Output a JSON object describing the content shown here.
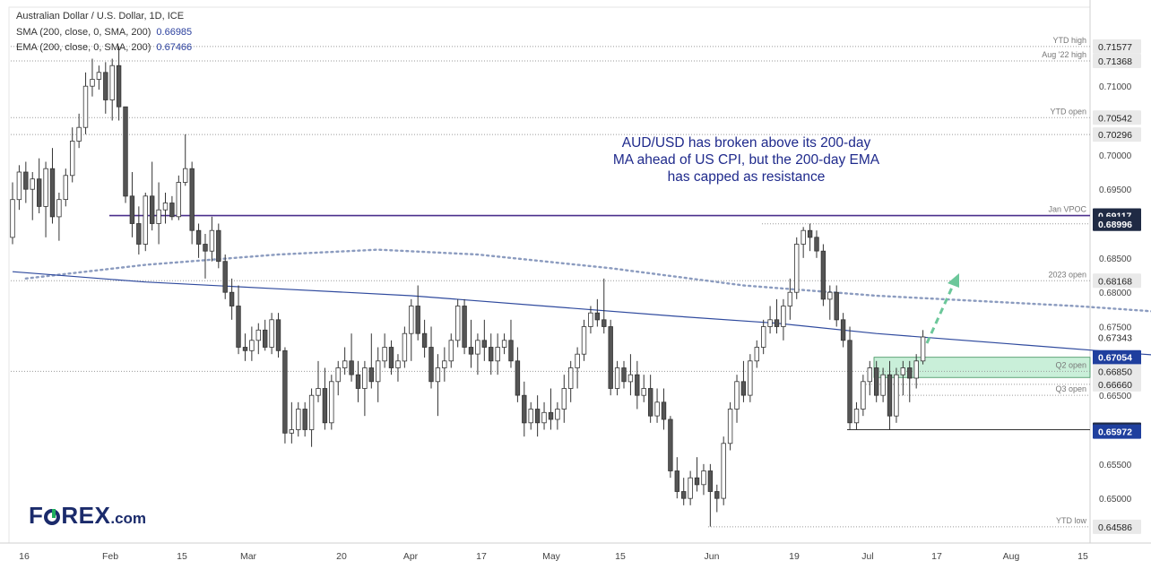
{
  "header": {
    "title": "Australian Dollar / U.S. Dollar, 1D, ICE",
    "sma_label": "SMA (200, close, 0, SMA, 200)",
    "sma_value": "0.66985",
    "ema_label": "EMA (200, close, 0, SMA, 200)",
    "ema_value": "0.67466"
  },
  "annotation": {
    "lines": [
      "AUD/USD has broken above its 200-day",
      "MA ahead of US CPI, but the 200-day EMA",
      "has capped as resistance"
    ]
  },
  "logo": {
    "text_1": "F",
    "text_2": "REX",
    "text_3": ".com"
  },
  "colors": {
    "bull": "#ffffff",
    "bear": "#555555",
    "wick": "#333333",
    "sma": "#2f4a9e",
    "ema": "#8b9bbf",
    "vpoc": "#4a2f8c",
    "zone": "#c9efd9",
    "arrow": "#6cc79a",
    "label_dark": "#1f2a44",
    "label_blue": "#1f3f9e"
  },
  "chart_data": {
    "type": "candlestick",
    "symbol": "Australian Dollar / U.S. Dollar",
    "timeframe": "1D",
    "ylim": [
      0.6435,
      0.7215
    ],
    "x_tick_labels": [
      "16",
      "Feb",
      "15",
      "Mar",
      "20",
      "Apr",
      "17",
      "May",
      "15",
      "Jun",
      "19",
      "Jul",
      "17",
      "Aug",
      "15"
    ],
    "y_tick_labels": [
      "0.71000",
      "0.70000",
      "0.69500",
      "0.68500",
      "0.68000",
      "0.67500",
      "0.66500",
      "0.65500",
      "0.65000"
    ],
    "y_tick_values": [
      0.71,
      0.7,
      0.695,
      0.685,
      0.68,
      0.675,
      0.665,
      0.655,
      0.65
    ],
    "price_levels": [
      {
        "label": "YTD high",
        "value": 0.71577,
        "badge": "0.71577",
        "style": "gray"
      },
      {
        "label": "Aug '22 high",
        "value": 0.71368,
        "badge": "0.71368",
        "style": "gray"
      },
      {
        "label": "YTD open",
        "value": 0.70542,
        "badge": "0.70542",
        "style": "gray"
      },
      {
        "label": "",
        "value": 0.70296,
        "badge": "0.70296",
        "style": "gray"
      },
      {
        "label": "Jan VPOC",
        "value": 0.69117,
        "badge": "0.69117",
        "style": "dark"
      },
      {
        "label": "",
        "value": 0.68996,
        "badge": "0.68996",
        "style": "dark"
      },
      {
        "label": "2023 open",
        "value": 0.68168,
        "badge": "0.68168",
        "style": "gray"
      },
      {
        "label": "",
        "value": 0.67343,
        "badge": "0.67343",
        "style": "plain"
      },
      {
        "label": "",
        "value": 0.67054,
        "badge": "0.67054",
        "style": "blue"
      },
      {
        "label": "Q2 open",
        "value": 0.6685,
        "badge": "0.66850",
        "style": "gray"
      },
      {
        "label": "",
        "value": 0.6666,
        "badge": "0.66660",
        "style": "gray"
      },
      {
        "label": "Q3 open",
        "value": 0.665,
        "badge": "",
        "style": "none"
      },
      {
        "label": "",
        "value": 0.66,
        "badge": "0.66000",
        "style": "dark"
      },
      {
        "label": "",
        "value": 0.65972,
        "badge": "0.65972",
        "style": "blue"
      },
      {
        "label": "YTD low",
        "value": 0.64586,
        "badge": "0.64586",
        "style": "gray"
      }
    ],
    "candles_ohlc": [
      [
        0.688,
        0.696,
        0.687,
        0.6935
      ],
      [
        0.6935,
        0.6985,
        0.692,
        0.6975
      ],
      [
        0.6975,
        0.699,
        0.693,
        0.695
      ],
      [
        0.695,
        0.6975,
        0.6905,
        0.6965
      ],
      [
        0.6965,
        0.6995,
        0.6915,
        0.6925
      ],
      [
        0.6925,
        0.699,
        0.688,
        0.698
      ],
      [
        0.698,
        0.701,
        0.69,
        0.691
      ],
      [
        0.691,
        0.6945,
        0.6875,
        0.6935
      ],
      [
        0.6935,
        0.698,
        0.6925,
        0.697
      ],
      [
        0.697,
        0.704,
        0.696,
        0.702
      ],
      [
        0.702,
        0.706,
        0.701,
        0.704
      ],
      [
        0.704,
        0.712,
        0.703,
        0.71
      ],
      [
        0.71,
        0.714,
        0.7085,
        0.711
      ],
      [
        0.711,
        0.713,
        0.7095,
        0.712
      ],
      [
        0.712,
        0.7135,
        0.706,
        0.708
      ],
      [
        0.708,
        0.714,
        0.705,
        0.713
      ],
      [
        0.713,
        0.7158,
        0.705,
        0.707
      ],
      [
        0.707,
        0.707,
        0.693,
        0.694
      ],
      [
        0.694,
        0.6975,
        0.688,
        0.69
      ],
      [
        0.69,
        0.6925,
        0.6855,
        0.687
      ],
      [
        0.687,
        0.6945,
        0.686,
        0.694
      ],
      [
        0.694,
        0.699,
        0.689,
        0.69
      ],
      [
        0.69,
        0.696,
        0.687,
        0.692
      ],
      [
        0.692,
        0.6945,
        0.69,
        0.693
      ],
      [
        0.693,
        0.694,
        0.6905,
        0.691
      ],
      [
        0.691,
        0.697,
        0.6905,
        0.696
      ],
      [
        0.696,
        0.703,
        0.6955,
        0.698
      ],
      [
        0.698,
        0.699,
        0.687,
        0.689
      ],
      [
        0.689,
        0.69,
        0.685,
        0.687
      ],
      [
        0.687,
        0.6885,
        0.682,
        0.686
      ],
      [
        0.686,
        0.691,
        0.6845,
        0.689
      ],
      [
        0.689,
        0.69,
        0.6835,
        0.6845
      ],
      [
        0.6845,
        0.6855,
        0.679,
        0.68
      ],
      [
        0.68,
        0.682,
        0.676,
        0.678
      ],
      [
        0.678,
        0.681,
        0.671,
        0.672
      ],
      [
        0.672,
        0.674,
        0.67,
        0.6715
      ],
      [
        0.6715,
        0.675,
        0.67,
        0.673
      ],
      [
        0.673,
        0.6755,
        0.671,
        0.6745
      ],
      [
        0.6745,
        0.676,
        0.6715,
        0.672
      ],
      [
        0.672,
        0.677,
        0.671,
        0.676
      ],
      [
        0.676,
        0.677,
        0.6705,
        0.6715
      ],
      [
        0.6715,
        0.672,
        0.658,
        0.6595
      ],
      [
        0.6595,
        0.664,
        0.658,
        0.66
      ],
      [
        0.66,
        0.664,
        0.659,
        0.663
      ],
      [
        0.663,
        0.664,
        0.659,
        0.66
      ],
      [
        0.66,
        0.666,
        0.6575,
        0.665
      ],
      [
        0.665,
        0.67,
        0.664,
        0.666
      ],
      [
        0.666,
        0.669,
        0.66,
        0.661
      ],
      [
        0.661,
        0.668,
        0.66,
        0.667
      ],
      [
        0.667,
        0.67,
        0.665,
        0.669
      ],
      [
        0.669,
        0.672,
        0.668,
        0.67
      ],
      [
        0.67,
        0.674,
        0.667,
        0.668
      ],
      [
        0.668,
        0.67,
        0.664,
        0.666
      ],
      [
        0.666,
        0.67,
        0.662,
        0.669
      ],
      [
        0.669,
        0.674,
        0.666,
        0.667
      ],
      [
        0.667,
        0.672,
        0.664,
        0.67
      ],
      [
        0.67,
        0.674,
        0.669,
        0.672
      ],
      [
        0.672,
        0.673,
        0.668,
        0.669
      ],
      [
        0.669,
        0.671,
        0.667,
        0.67
      ],
      [
        0.67,
        0.675,
        0.669,
        0.674
      ],
      [
        0.674,
        0.679,
        0.67,
        0.678
      ],
      [
        0.678,
        0.681,
        0.673,
        0.674
      ],
      [
        0.674,
        0.676,
        0.6705,
        0.672
      ],
      [
        0.672,
        0.675,
        0.666,
        0.667
      ],
      [
        0.667,
        0.671,
        0.662,
        0.669
      ],
      [
        0.669,
        0.672,
        0.667,
        0.67
      ],
      [
        0.67,
        0.674,
        0.669,
        0.673
      ],
      [
        0.673,
        0.679,
        0.672,
        0.678
      ],
      [
        0.678,
        0.679,
        0.671,
        0.672
      ],
      [
        0.672,
        0.676,
        0.669,
        0.671
      ],
      [
        0.671,
        0.674,
        0.668,
        0.673
      ],
      [
        0.673,
        0.676,
        0.67,
        0.672
      ],
      [
        0.672,
        0.674,
        0.668,
        0.67
      ],
      [
        0.67,
        0.674,
        0.668,
        0.672
      ],
      [
        0.672,
        0.674,
        0.671,
        0.673
      ],
      [
        0.673,
        0.676,
        0.669,
        0.67
      ],
      [
        0.67,
        0.672,
        0.664,
        0.665
      ],
      [
        0.665,
        0.667,
        0.659,
        0.661
      ],
      [
        0.661,
        0.664,
        0.66,
        0.663
      ],
      [
        0.663,
        0.665,
        0.659,
        0.661
      ],
      [
        0.661,
        0.664,
        0.66,
        0.6625
      ],
      [
        0.6625,
        0.666,
        0.66,
        0.6615
      ],
      [
        0.6615,
        0.664,
        0.66,
        0.663
      ],
      [
        0.663,
        0.668,
        0.661,
        0.666
      ],
      [
        0.666,
        0.67,
        0.664,
        0.669
      ],
      [
        0.669,
        0.672,
        0.666,
        0.671
      ],
      [
        0.671,
        0.676,
        0.67,
        0.675
      ],
      [
        0.675,
        0.678,
        0.674,
        0.677
      ],
      [
        0.677,
        0.679,
        0.675,
        0.676
      ],
      [
        0.676,
        0.682,
        0.674,
        0.675
      ],
      [
        0.675,
        0.676,
        0.665,
        0.666
      ],
      [
        0.666,
        0.67,
        0.665,
        0.669
      ],
      [
        0.669,
        0.67,
        0.666,
        0.667
      ],
      [
        0.667,
        0.671,
        0.665,
        0.668
      ],
      [
        0.668,
        0.67,
        0.663,
        0.665
      ],
      [
        0.665,
        0.668,
        0.664,
        0.666
      ],
      [
        0.666,
        0.668,
        0.661,
        0.662
      ],
      [
        0.662,
        0.666,
        0.661,
        0.664
      ],
      [
        0.664,
        0.666,
        0.66,
        0.6615
      ],
      [
        0.6615,
        0.662,
        0.653,
        0.654
      ],
      [
        0.654,
        0.656,
        0.65,
        0.651
      ],
      [
        0.651,
        0.653,
        0.649,
        0.65
      ],
      [
        0.65,
        0.654,
        0.649,
        0.653
      ],
      [
        0.653,
        0.656,
        0.651,
        0.652
      ],
      [
        0.652,
        0.655,
        0.6505,
        0.654
      ],
      [
        0.654,
        0.655,
        0.6459,
        0.651
      ],
      [
        0.651,
        0.652,
        0.648,
        0.65
      ],
      [
        0.65,
        0.659,
        0.649,
        0.658
      ],
      [
        0.658,
        0.664,
        0.657,
        0.663
      ],
      [
        0.663,
        0.668,
        0.661,
        0.667
      ],
      [
        0.667,
        0.67,
        0.664,
        0.665
      ],
      [
        0.665,
        0.671,
        0.664,
        0.67
      ],
      [
        0.67,
        0.673,
        0.669,
        0.672
      ],
      [
        0.672,
        0.676,
        0.671,
        0.675
      ],
      [
        0.675,
        0.678,
        0.674,
        0.676
      ],
      [
        0.676,
        0.679,
        0.674,
        0.675
      ],
      [
        0.675,
        0.679,
        0.673,
        0.678
      ],
      [
        0.678,
        0.682,
        0.676,
        0.68
      ],
      [
        0.68,
        0.688,
        0.679,
        0.687
      ],
      [
        0.687,
        0.6895,
        0.685,
        0.689
      ],
      [
        0.689,
        0.69,
        0.686,
        0.688
      ],
      [
        0.688,
        0.689,
        0.685,
        0.686
      ],
      [
        0.686,
        0.687,
        0.678,
        0.679
      ],
      [
        0.679,
        0.681,
        0.676,
        0.68
      ],
      [
        0.68,
        0.681,
        0.675,
        0.676
      ],
      [
        0.676,
        0.677,
        0.672,
        0.673
      ],
      [
        0.673,
        0.675,
        0.66,
        0.661
      ],
      [
        0.661,
        0.664,
        0.66,
        0.663
      ],
      [
        0.663,
        0.668,
        0.662,
        0.667
      ],
      [
        0.667,
        0.67,
        0.665,
        0.669
      ],
      [
        0.669,
        0.67,
        0.664,
        0.665
      ],
      [
        0.665,
        0.669,
        0.664,
        0.668
      ],
      [
        0.668,
        0.67,
        0.66,
        0.662
      ],
      [
        0.662,
        0.669,
        0.661,
        0.668
      ],
      [
        0.668,
        0.67,
        0.665,
        0.669
      ],
      [
        0.669,
        0.67,
        0.664,
        0.6675
      ],
      [
        0.6675,
        0.671,
        0.666,
        0.67
      ],
      [
        0.67,
        0.6745,
        0.6695,
        0.6735
      ]
    ],
    "sma_200_path": [
      [
        0,
        0.683
      ],
      [
        20,
        0.6815
      ],
      [
        40,
        0.6805
      ],
      [
        60,
        0.6795
      ],
      [
        80,
        0.678
      ],
      [
        100,
        0.6765
      ],
      [
        115,
        0.6755
      ],
      [
        130,
        0.674
      ],
      [
        150,
        0.6725
      ],
      [
        170,
        0.671
      ],
      [
        185,
        0.67
      ],
      [
        200,
        0.669
      ],
      [
        210,
        0.6688
      ],
      [
        220,
        0.6688
      ],
      [
        230,
        0.669
      ],
      [
        240,
        0.6695
      ],
      [
        250,
        0.6705
      ]
    ],
    "ema_200_path": [
      [
        2,
        0.682
      ],
      [
        20,
        0.684
      ],
      [
        40,
        0.6855
      ],
      [
        55,
        0.6862
      ],
      [
        70,
        0.6855
      ],
      [
        90,
        0.6835
      ],
      [
        110,
        0.681
      ],
      [
        130,
        0.6795
      ],
      [
        160,
        0.678
      ],
      [
        190,
        0.676
      ],
      [
        210,
        0.6755
      ],
      [
        230,
        0.675
      ],
      [
        247,
        0.6745
      ]
    ],
    "vpoc_line": {
      "label": "Jan VPOC",
      "value": 0.69117
    },
    "resistance_zone": {
      "low": 0.6676,
      "high": 0.67054
    }
  }
}
